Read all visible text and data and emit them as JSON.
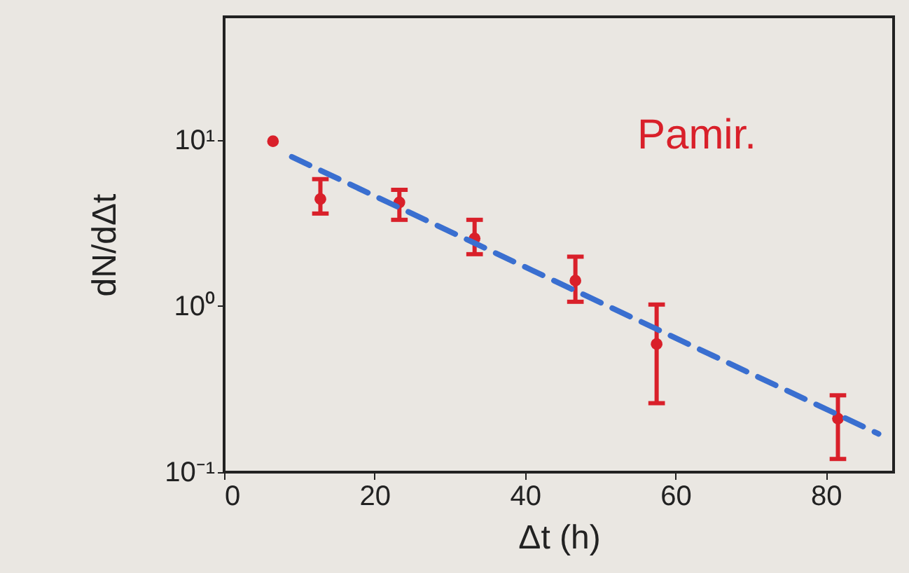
{
  "chart_data": {
    "type": "scatter",
    "xlabel": "Δt (h)",
    "ylabel": "dN/dΔt",
    "annotations": [
      "Pamir."
    ],
    "log": "y",
    "grid": false,
    "marker": "circle",
    "xlim": [
      0,
      89
    ],
    "xticks": [
      0,
      20,
      40,
      60,
      80
    ],
    "ylim": [
      0.1,
      55
    ],
    "yticks": [
      {
        "value": 0.1,
        "label": "10⁻¹"
      },
      {
        "value": 1,
        "label": "10⁰"
      },
      {
        "value": 10,
        "label": "10¹"
      }
    ],
    "series": [
      {
        "type": "scatter",
        "color": "#d9202a",
        "x": [
          6.5,
          12.8,
          23.3,
          33.3,
          46.7,
          57.5,
          81.6
        ],
        "values": [
          9.8,
          4.4,
          4.2,
          2.55,
          1.42,
          0.59,
          0.21
        ],
        "errors": [
          null,
          [
            3.6,
            5.8
          ],
          [
            3.3,
            5.0
          ],
          [
            2.05,
            3.3
          ],
          [
            1.06,
            1.98
          ],
          [
            0.26,
            1.02
          ],
          [
            0.12,
            0.29
          ]
        ]
      },
      {
        "type": "line",
        "color": "#3a6fd0",
        "line_style": "dashed",
        "marker": "none",
        "x": [
          9.0,
          87
        ],
        "values": [
          7.9,
          0.17
        ]
      }
    ]
  }
}
